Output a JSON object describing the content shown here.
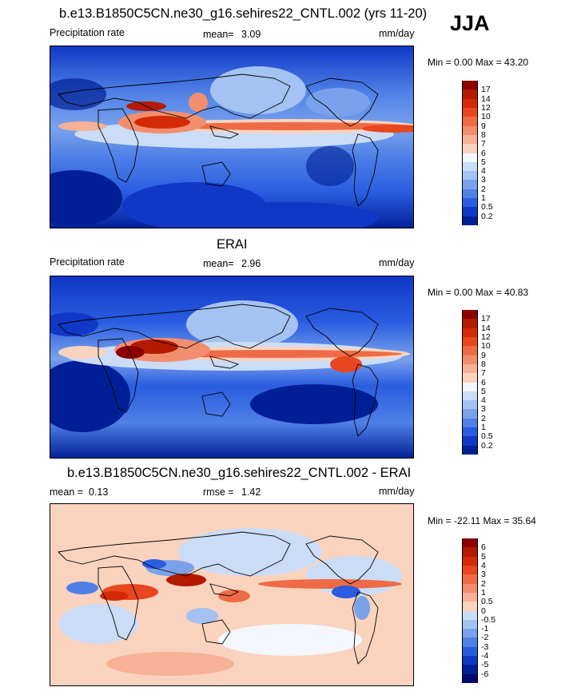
{
  "season": "JJA",
  "panels": [
    {
      "id": "model",
      "title": "b.e13.B1850C5CN.ne30_g16.sehires22_CNTL.002 (yrs 11-20)",
      "left_label": "Precipitation rate",
      "stat_label": "mean=",
      "stat_value": "3.09",
      "units": "mm/day",
      "min_max": "Min =   0.00 Max =  43.20",
      "field_type": "precip"
    },
    {
      "id": "obs",
      "title": "ERAI",
      "left_label": "Precipitation rate",
      "stat_label": "mean=",
      "stat_value": "2.96",
      "units": "mm/day",
      "min_max": "Min =   0.00 Max =  40.83",
      "field_type": "precip"
    },
    {
      "id": "diff",
      "title": "b.e13.B1850C5CN.ne30_g16.sehires22_CNTL.002 - ERAI",
      "left_label": "mean =",
      "left_value": "0.13",
      "stat_label": "rmse =",
      "stat_value": "1.42",
      "units": "mm/day",
      "min_max": "Min = -22.11 Max =  35.64",
      "field_type": "diff"
    }
  ],
  "colorbars": {
    "precip": {
      "labels": [
        "17",
        "14",
        "12",
        "10",
        "9",
        "8",
        "7",
        "6",
        "5",
        "4",
        "3",
        "2",
        "1",
        "0.5",
        "0.2"
      ],
      "colors": [
        "#8c0000",
        "#b31a00",
        "#d42a08",
        "#e8461e",
        "#ee6b45",
        "#f28e6e",
        "#f6b196",
        "#fad3bf",
        "#f3f6fb",
        "#cbdcf6",
        "#a4c2f2",
        "#7aa2ec",
        "#4f80e6",
        "#2a5ce0",
        "#1037c6",
        "#001f96"
      ]
    },
    "diff": {
      "labels": [
        "6",
        "5",
        "4",
        "3",
        "2",
        "1",
        "0.5",
        "0",
        "-0.5",
        "-1",
        "-2",
        "-3",
        "-4",
        "-5",
        "-6"
      ],
      "colors": [
        "#8c0000",
        "#b31a00",
        "#d42a08",
        "#e8461e",
        "#ee6b45",
        "#f28e6e",
        "#f6b196",
        "#fad3bf",
        "#cbdcf6",
        "#a4c2f2",
        "#7aa2ec",
        "#4f80e6",
        "#2a5ce0",
        "#1037c6",
        "#001f96",
        "#000a6e"
      ]
    }
  }
}
